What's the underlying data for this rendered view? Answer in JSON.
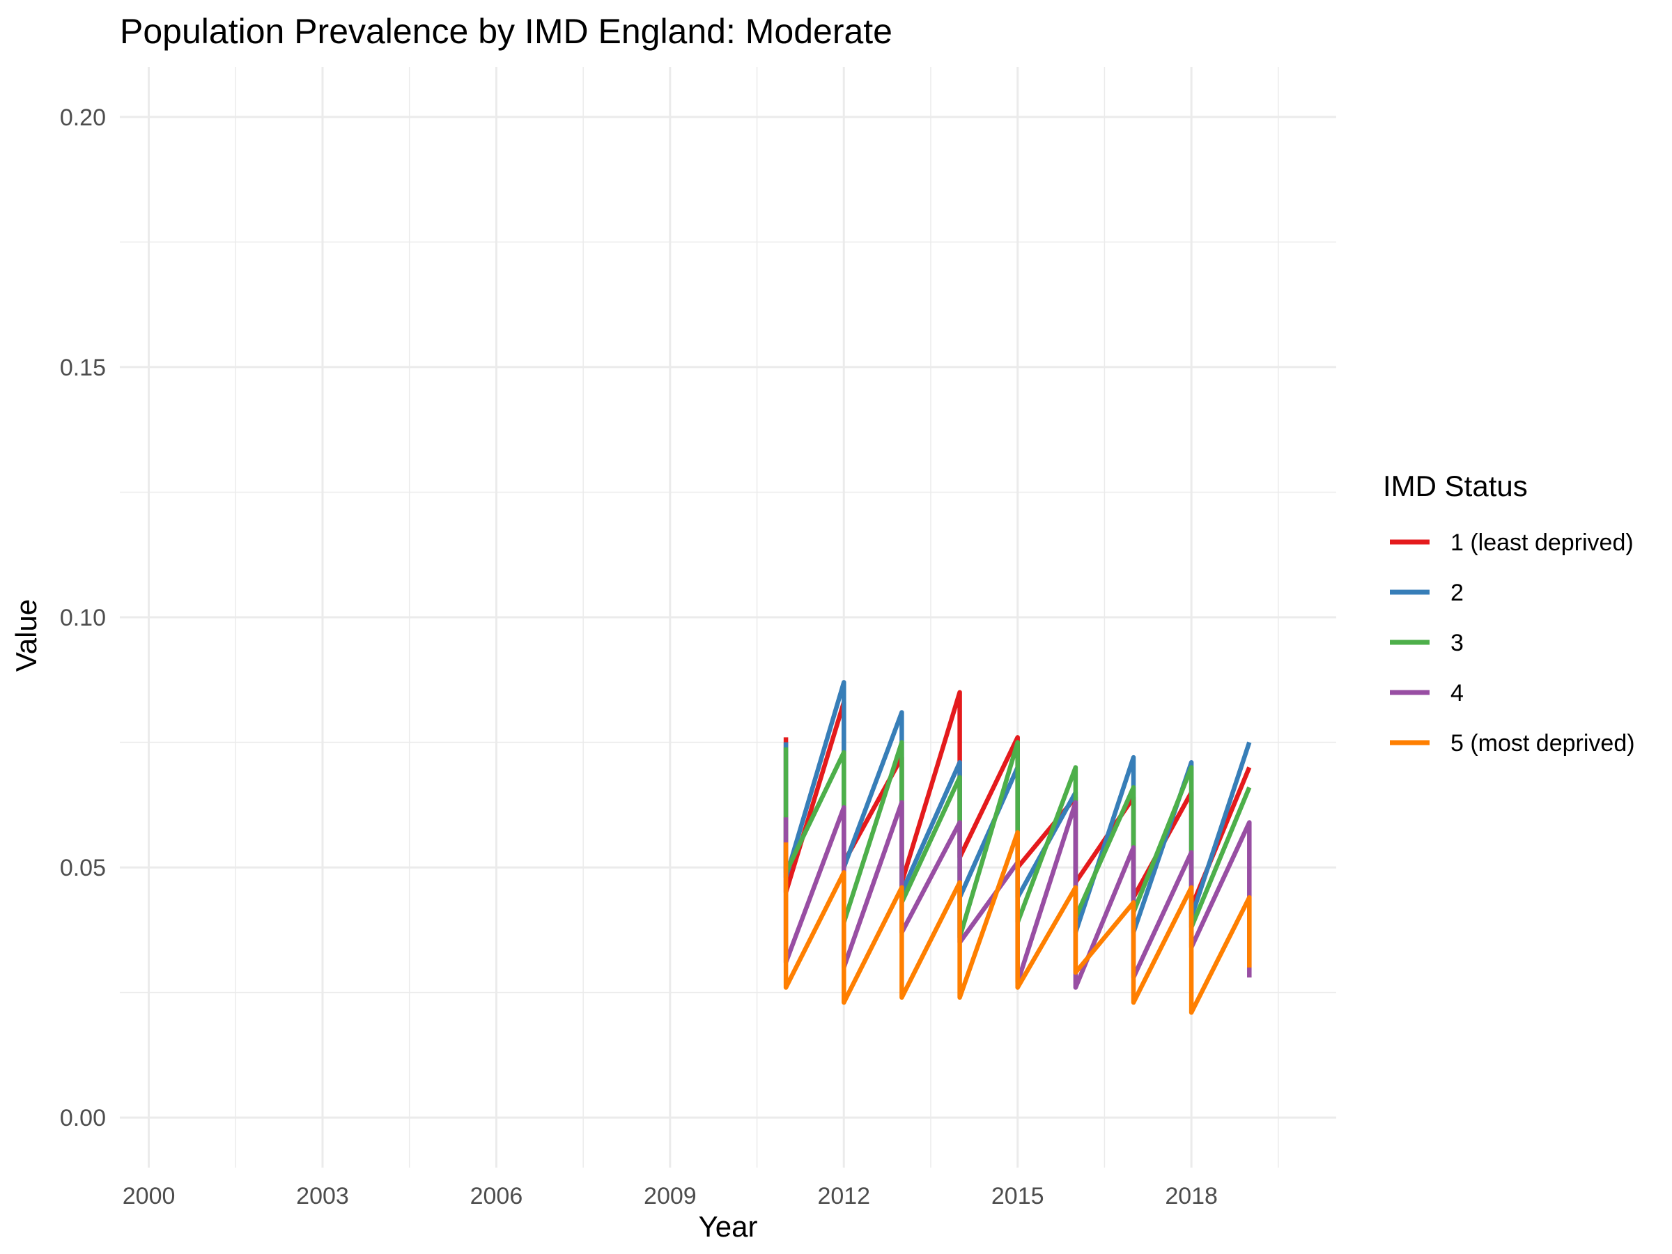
{
  "chart_data": {
    "type": "line",
    "title": "Population Prevalence by IMD England: Moderate",
    "xlabel": "Year",
    "ylabel": "Value",
    "xlim": [
      1999.5,
      2020.5
    ],
    "ylim": [
      -0.01,
      0.21
    ],
    "x_ticks": [
      {
        "value": 2000,
        "label": "2000"
      },
      {
        "value": 2003,
        "label": "2003"
      },
      {
        "value": 2006,
        "label": "2006"
      },
      {
        "value": 2009,
        "label": "2009"
      },
      {
        "value": 2012,
        "label": "2012"
      },
      {
        "value": 2015,
        "label": "2015"
      },
      {
        "value": 2018,
        "label": "2018"
      }
    ],
    "y_ticks": [
      {
        "value": 0.0,
        "label": "0.00"
      },
      {
        "value": 0.05,
        "label": "0.05"
      },
      {
        "value": 0.1,
        "label": "0.10"
      },
      {
        "value": 0.15,
        "label": "0.15"
      },
      {
        "value": 0.2,
        "label": "0.20"
      }
    ],
    "grid": true,
    "legend_title": "IMD Status",
    "legend_position": "right",
    "series": [
      {
        "name": "1 (least deprived)",
        "color": "#E41A1C",
        "points": [
          [
            2011,
            0.076
          ],
          [
            2011,
            0.045
          ],
          [
            2012,
            0.083
          ],
          [
            2012,
            0.051
          ],
          [
            2013,
            0.072
          ],
          [
            2013,
            0.047
          ],
          [
            2014,
            0.085
          ],
          [
            2014,
            0.052
          ],
          [
            2015,
            0.076
          ],
          [
            2015,
            0.05
          ],
          [
            2016,
            0.064
          ],
          [
            2016,
            0.047
          ],
          [
            2017,
            0.064
          ],
          [
            2017,
            0.044
          ],
          [
            2018,
            0.065
          ],
          [
            2018,
            0.042
          ],
          [
            2019,
            0.07
          ]
        ]
      },
      {
        "name": "2",
        "color": "#377EB8",
        "points": [
          [
            2011,
            0.075
          ],
          [
            2011,
            0.048
          ],
          [
            2012,
            0.087
          ],
          [
            2012,
            0.05
          ],
          [
            2013,
            0.081
          ],
          [
            2013,
            0.045
          ],
          [
            2014,
            0.071
          ],
          [
            2014,
            0.044
          ],
          [
            2015,
            0.07
          ],
          [
            2015,
            0.044
          ],
          [
            2016,
            0.065
          ],
          [
            2016,
            0.037
          ],
          [
            2017,
            0.072
          ],
          [
            2017,
            0.037
          ],
          [
            2018,
            0.071
          ],
          [
            2018,
            0.04
          ],
          [
            2019,
            0.075
          ]
        ]
      },
      {
        "name": "3",
        "color": "#4DAF4A",
        "points": [
          [
            2011,
            0.074
          ],
          [
            2011,
            0.049
          ],
          [
            2012,
            0.073
          ],
          [
            2012,
            0.039
          ],
          [
            2013,
            0.075
          ],
          [
            2013,
            0.043
          ],
          [
            2014,
            0.068
          ],
          [
            2014,
            0.036
          ],
          [
            2015,
            0.075
          ],
          [
            2015,
            0.039
          ],
          [
            2016,
            0.07
          ],
          [
            2016,
            0.04
          ],
          [
            2017,
            0.066
          ],
          [
            2017,
            0.041
          ],
          [
            2018,
            0.07
          ],
          [
            2018,
            0.038
          ],
          [
            2019,
            0.066
          ]
        ]
      },
      {
        "name": "4",
        "color": "#984EA3",
        "points": [
          [
            2011,
            0.06
          ],
          [
            2011,
            0.031
          ],
          [
            2012,
            0.062
          ],
          [
            2012,
            0.03
          ],
          [
            2013,
            0.063
          ],
          [
            2013,
            0.037
          ],
          [
            2014,
            0.059
          ],
          [
            2014,
            0.035
          ],
          [
            2015,
            0.051
          ],
          [
            2015,
            0.027
          ],
          [
            2016,
            0.063
          ],
          [
            2016,
            0.026
          ],
          [
            2017,
            0.054
          ],
          [
            2017,
            0.028
          ],
          [
            2018,
            0.053
          ],
          [
            2018,
            0.034
          ],
          [
            2019,
            0.059
          ],
          [
            2019,
            0.028
          ]
        ]
      },
      {
        "name": "5 (most deprived)",
        "color": "#FF7F00",
        "points": [
          [
            2011,
            0.055
          ],
          [
            2011,
            0.026
          ],
          [
            2012,
            0.049
          ],
          [
            2012,
            0.023
          ],
          [
            2013,
            0.046
          ],
          [
            2013,
            0.024
          ],
          [
            2014,
            0.047
          ],
          [
            2014,
            0.024
          ],
          [
            2015,
            0.057
          ],
          [
            2015,
            0.026
          ],
          [
            2016,
            0.046
          ],
          [
            2016,
            0.029
          ],
          [
            2017,
            0.043
          ],
          [
            2017,
            0.023
          ],
          [
            2018,
            0.046
          ],
          [
            2018,
            0.021
          ],
          [
            2019,
            0.044
          ],
          [
            2019,
            0.03
          ]
        ]
      }
    ]
  }
}
